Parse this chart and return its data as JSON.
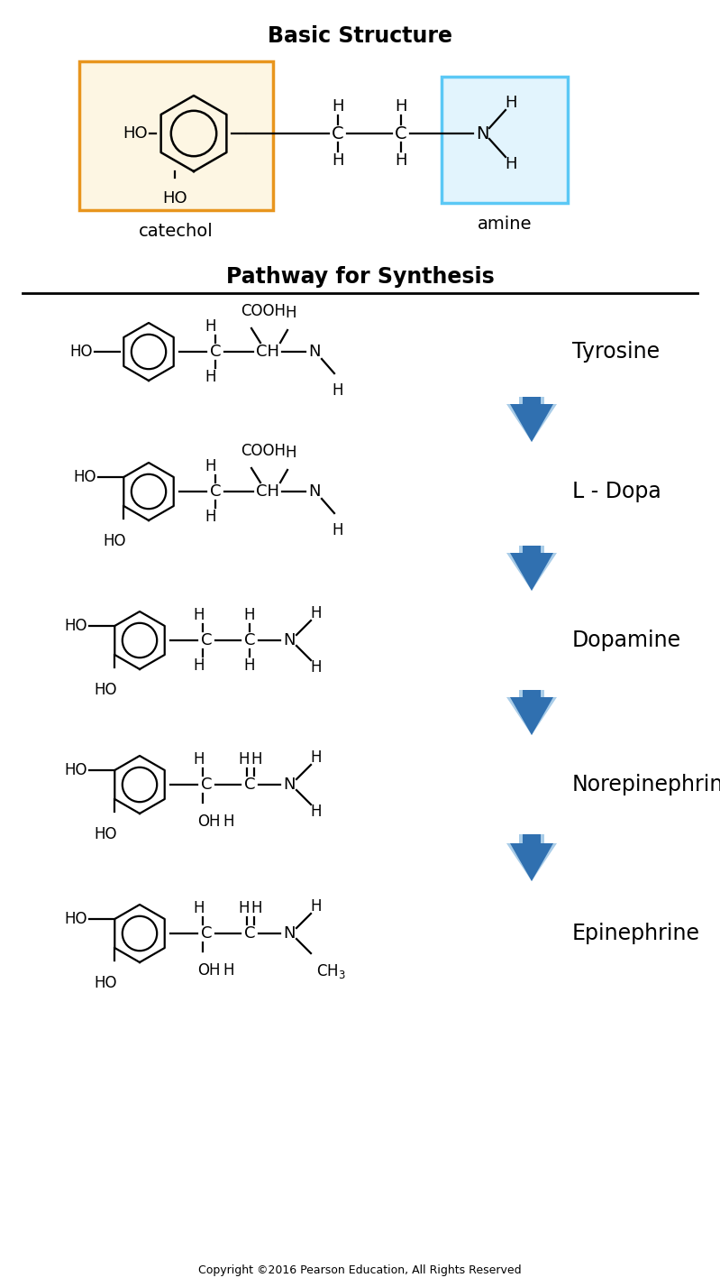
{
  "title_basic": "Basic Structure",
  "title_synthesis": "Pathway for Synthesis",
  "label_catechol": "catechol",
  "label_amine": "amine",
  "synthesis_labels": [
    "Tyrosine",
    "L - Dopa",
    "Dopamine",
    "Norepinephrine",
    "Epinephrine"
  ],
  "copyright": "Copyright ©2016 Pearson Education, All Rights Reserved",
  "bg_color": "#ffffff",
  "box_catechol_color": "#e8951e",
  "box_catechol_fill": "#fdf6e3",
  "box_amine_color": "#5bc8f5",
  "box_amine_fill": "#e2f4fd",
  "arrow_color_light": "#7ab4df",
  "arrow_color_dark": "#2266aa",
  "title_fontsize": 17,
  "label_fontsize": 14,
  "mol_fontsize": 12,
  "synth_label_fontsize": 17,
  "copyright_fontsize": 9
}
